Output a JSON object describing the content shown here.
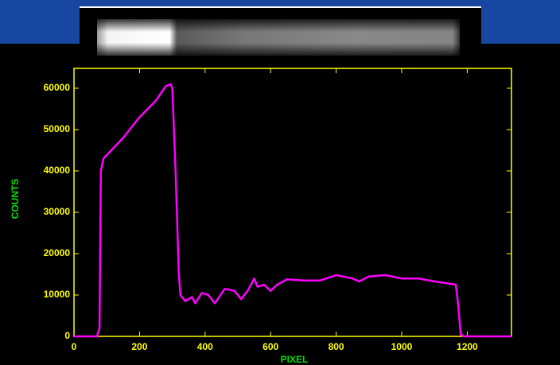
{
  "chart_data": {
    "type": "line",
    "xlabel": "PIXEL",
    "ylabel": "COUNTS",
    "color": "#ff00ff",
    "axis_color": "#ffff00",
    "x": [
      0,
      70,
      78,
      82,
      90,
      150,
      200,
      250,
      280,
      295,
      300,
      310,
      320,
      325,
      340,
      360,
      370,
      390,
      410,
      430,
      460,
      490,
      510,
      530,
      550,
      560,
      580,
      600,
      620,
      650,
      700,
      750,
      800,
      850,
      870,
      900,
      950,
      1000,
      1050,
      1100,
      1150,
      1165,
      1172,
      1180,
      1190,
      1335
    ],
    "values": [
      0,
      0,
      2000,
      40000,
      43000,
      48000,
      53000,
      57000,
      60500,
      61000,
      60000,
      40000,
      15000,
      10000,
      8500,
      9500,
      8000,
      10500,
      10000,
      8000,
      11500,
      11000,
      9000,
      11000,
      14000,
      12000,
      12500,
      11000,
      12500,
      13800,
      13500,
      13500,
      14800,
      14000,
      13300,
      14500,
      14800,
      14000,
      14000,
      13300,
      12700,
      12500,
      8000,
      500,
      0,
      0
    ],
    "xlim": [
      0,
      1335
    ],
    "ylim": [
      0,
      64800
    ],
    "xticks": [
      0,
      200,
      400,
      600,
      800,
      1000,
      1200
    ],
    "yticks": [
      0,
      10000,
      20000,
      30000,
      40000,
      50000,
      60000
    ]
  }
}
